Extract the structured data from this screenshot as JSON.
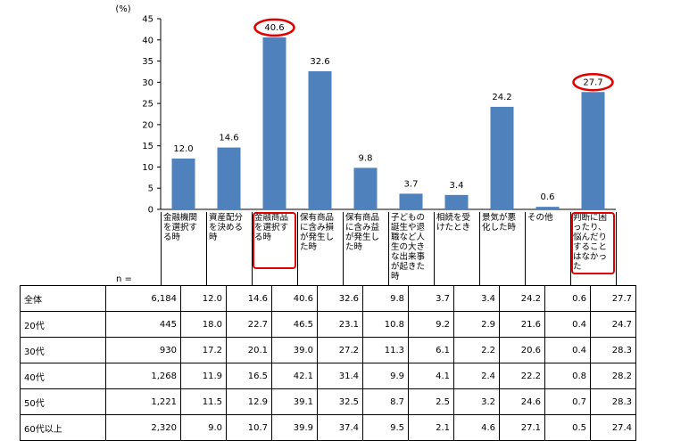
{
  "chart_data": {
    "type": "bar",
    "unit": "(%)",
    "ylim": [
      0,
      45
    ],
    "yticks": [
      0,
      5,
      10,
      15,
      20,
      25,
      30,
      35,
      40,
      45
    ],
    "categories": [
      "金融機関を選択する時",
      "資産配分を決める時",
      "金融商品を選択する時",
      "保有商品に含み損が発生した時",
      "保有商品に含み益が発生した時",
      "子どもの誕生や退職など人生の大きな出来事が起きた時",
      "相続を受けたとき",
      "景気が悪化した時",
      "その他",
      "判断に困ったり、悩んだりすることはなかった"
    ],
    "values": [
      12.0,
      14.6,
      40.6,
      32.6,
      9.8,
      3.7,
      3.4,
      24.2,
      0.6,
      27.7
    ],
    "value_labels": [
      "12.0",
      "14.6",
      "40.6",
      "32.6",
      "9.8",
      "3.7",
      "3.4",
      "24.2",
      "0.6",
      "27.7"
    ],
    "highlighted": [
      2,
      9
    ],
    "bar_color": "#4f81bd",
    "highlight_color": "#e00000"
  },
  "table": {
    "n_label": "n =",
    "rows": [
      {
        "label": "全体",
        "n": "6,184",
        "values": [
          "12.0",
          "14.6",
          "40.6",
          "32.6",
          "9.8",
          "3.7",
          "3.4",
          "24.2",
          "0.6",
          "27.7"
        ]
      },
      {
        "label": "20代",
        "n": "445",
        "values": [
          "18.0",
          "22.7",
          "46.5",
          "23.1",
          "10.8",
          "9.2",
          "2.9",
          "21.6",
          "0.4",
          "24.7"
        ]
      },
      {
        "label": "30代",
        "n": "930",
        "values": [
          "17.2",
          "20.1",
          "39.0",
          "27.2",
          "11.3",
          "6.1",
          "2.2",
          "20.6",
          "0.4",
          "28.3"
        ]
      },
      {
        "label": "40代",
        "n": "1,268",
        "values": [
          "11.9",
          "16.5",
          "42.1",
          "31.4",
          "9.9",
          "4.1",
          "2.4",
          "22.2",
          "0.8",
          "28.2"
        ]
      },
      {
        "label": "50代",
        "n": "1,221",
        "values": [
          "11.5",
          "12.9",
          "39.1",
          "32.5",
          "8.7",
          "2.5",
          "3.2",
          "24.6",
          "0.7",
          "28.3"
        ]
      },
      {
        "label": "60代以上",
        "n": "2,320",
        "values": [
          "9.0",
          "10.7",
          "39.9",
          "37.4",
          "9.5",
          "2.1",
          "4.6",
          "27.1",
          "0.5",
          "27.4"
        ]
      }
    ]
  }
}
